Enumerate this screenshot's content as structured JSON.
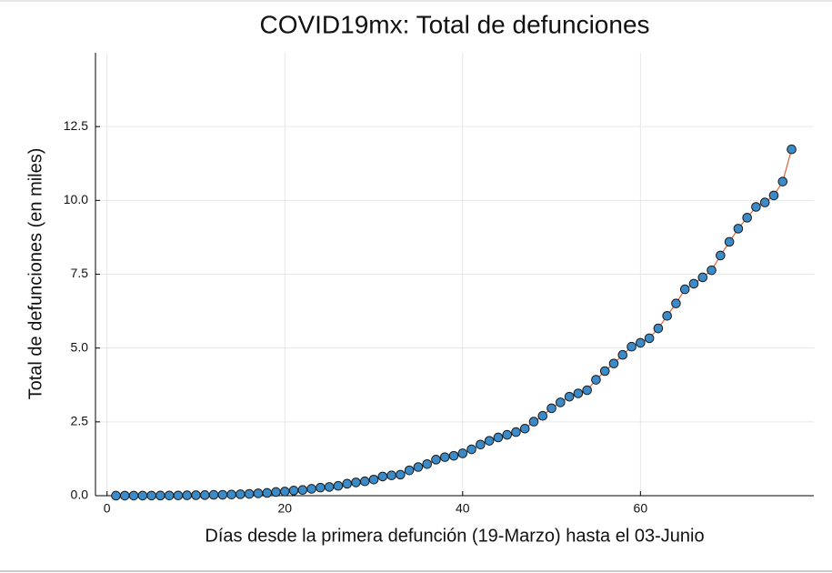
{
  "chart_data": {
    "type": "line",
    "title": "COVID19mx: Total de defunciones",
    "xlabel": "Días desde la primera defunción (19-Marzo) hasta el 03-Junio",
    "ylabel": "Total de defunciones (en miles)",
    "x": [
      1,
      2,
      3,
      4,
      5,
      6,
      7,
      8,
      9,
      10,
      11,
      12,
      13,
      14,
      15,
      16,
      17,
      18,
      19,
      20,
      21,
      22,
      23,
      24,
      25,
      26,
      27,
      28,
      29,
      30,
      31,
      32,
      33,
      34,
      35,
      36,
      37,
      38,
      39,
      40,
      41,
      42,
      43,
      44,
      45,
      46,
      47,
      48,
      49,
      50,
      51,
      52,
      53,
      54,
      55,
      56,
      57,
      58,
      59,
      60,
      61,
      62,
      63,
      64,
      65,
      66,
      67,
      68,
      69,
      70,
      71,
      72,
      73,
      74,
      75,
      76,
      77
    ],
    "series": [
      {
        "name": "Total de defunciones",
        "color": "#e0633a",
        "marker_color": "#3b8bc9",
        "values": [
          0.001,
          0.002,
          0.002,
          0.002,
          0.004,
          0.005,
          0.006,
          0.008,
          0.012,
          0.016,
          0.02,
          0.028,
          0.029,
          0.037,
          0.05,
          0.06,
          0.079,
          0.094,
          0.125,
          0.141,
          0.174,
          0.194,
          0.233,
          0.273,
          0.296,
          0.332,
          0.406,
          0.449,
          0.486,
          0.546,
          0.65,
          0.686,
          0.712,
          0.857,
          0.97,
          1.069,
          1.221,
          1.305,
          1.351,
          1.434,
          1.569,
          1.732,
          1.859,
          1.972,
          2.061,
          2.154,
          2.271,
          2.507,
          2.704,
          2.961,
          3.16,
          3.353,
          3.465,
          3.573,
          3.926,
          4.22,
          4.477,
          4.767,
          5.045,
          5.177,
          5.332,
          5.666,
          6.09,
          6.51,
          6.989,
          7.179,
          7.394,
          7.633,
          8.134,
          8.597,
          9.044,
          9.415,
          9.779,
          9.93,
          10.167,
          10.637,
          11.729
        ]
      }
    ],
    "xlim": [
      -1.3,
      79.5
    ],
    "ylim": [
      0,
      15
    ],
    "xticks": [
      0,
      20,
      40,
      60
    ],
    "yticks": [
      {
        "value": 0,
        "label": "0.0"
      },
      {
        "value": 2.5,
        "label": "2.5"
      },
      {
        "value": 5,
        "label": "5.0"
      },
      {
        "value": 7.5,
        "label": "7.5"
      },
      {
        "value": 10,
        "label": "10.0"
      },
      {
        "value": 12.5,
        "label": "12.5"
      }
    ],
    "grid": true
  }
}
